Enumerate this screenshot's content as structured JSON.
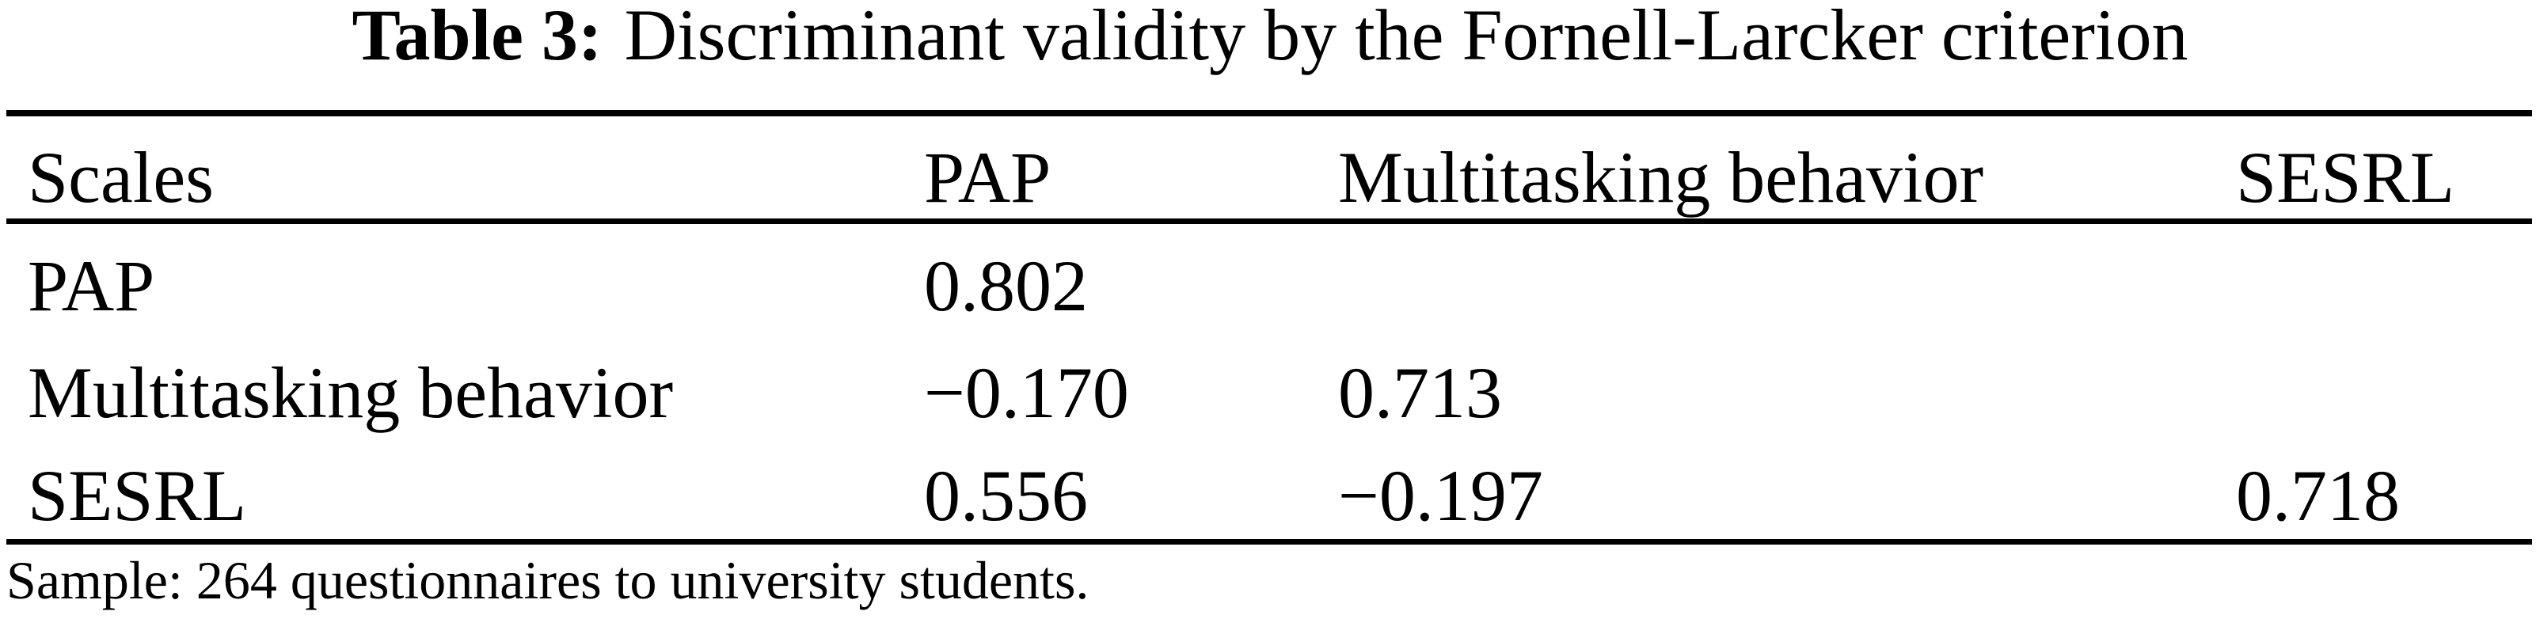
{
  "title": {
    "label": "Table 3:",
    "text": "Discriminant validity by the Fornell-Larcker criterion"
  },
  "table": {
    "header": [
      "Scales",
      "PAP",
      "Multitasking behavior",
      "SESRL"
    ],
    "rows": [
      [
        "PAP",
        "0.802",
        "",
        ""
      ],
      [
        "Multitasking behavior",
        "−0.170",
        "0.713",
        ""
      ],
      [
        "SESRL",
        "0.556",
        "−0.197",
        "0.718"
      ]
    ]
  },
  "footnote": "Sample: 264 questionnaires to university students.",
  "colors": {
    "text": "#000000",
    "background": "#ffffff",
    "rule": "#000000"
  },
  "chart_data": {
    "type": "table",
    "title": "Table 3: Discriminant validity by the Fornell-Larcker criterion",
    "columns": [
      "Scales",
      "PAP",
      "Multitasking behavior",
      "SESRL"
    ],
    "rows": [
      {
        "scale": "PAP",
        "PAP": 0.802,
        "Multitasking behavior": null,
        "SESRL": null
      },
      {
        "scale": "Multitasking behavior",
        "PAP": -0.17,
        "Multitasking behavior": 0.713,
        "SESRL": null
      },
      {
        "scale": "SESRL",
        "PAP": 0.556,
        "Multitasking behavior": -0.197,
        "SESRL": 0.718
      }
    ],
    "note": "Sample: 264 questionnaires to university students."
  }
}
